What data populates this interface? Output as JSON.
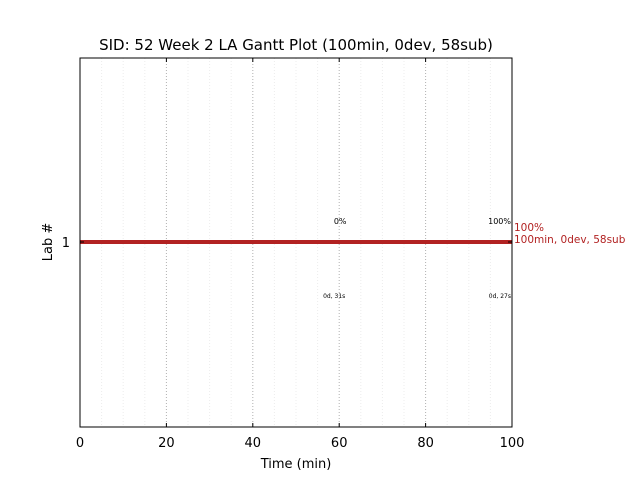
{
  "chart_data": {
    "type": "bar",
    "title": "SID: 52 Week 2 LA Gantt Plot (100min, 0dev, 58sub)",
    "xlabel": "Time (min)",
    "ylabel": "Lab #",
    "xlim": [
      0,
      100
    ],
    "x_ticks": [
      0,
      20,
      40,
      60,
      80,
      100
    ],
    "x_minor_step": 5,
    "y_categories": [
      "1"
    ],
    "bars": [
      {
        "lab": "1",
        "start": 0,
        "end": 100,
        "color": "#b22222"
      }
    ],
    "bar_annotation": {
      "lines": [
        "100%",
        "100min, 0dev, 58sub"
      ],
      "color": "#b22222"
    },
    "point_labels": [
      {
        "x": 60,
        "above": "0%",
        "below": "0d, 31s"
      },
      {
        "x": 100,
        "above": "100%",
        "below": "0d, 27s"
      }
    ],
    "grid": true,
    "major_grid_color": "#b0b0b0",
    "minor_grid_color": "#ececec"
  }
}
